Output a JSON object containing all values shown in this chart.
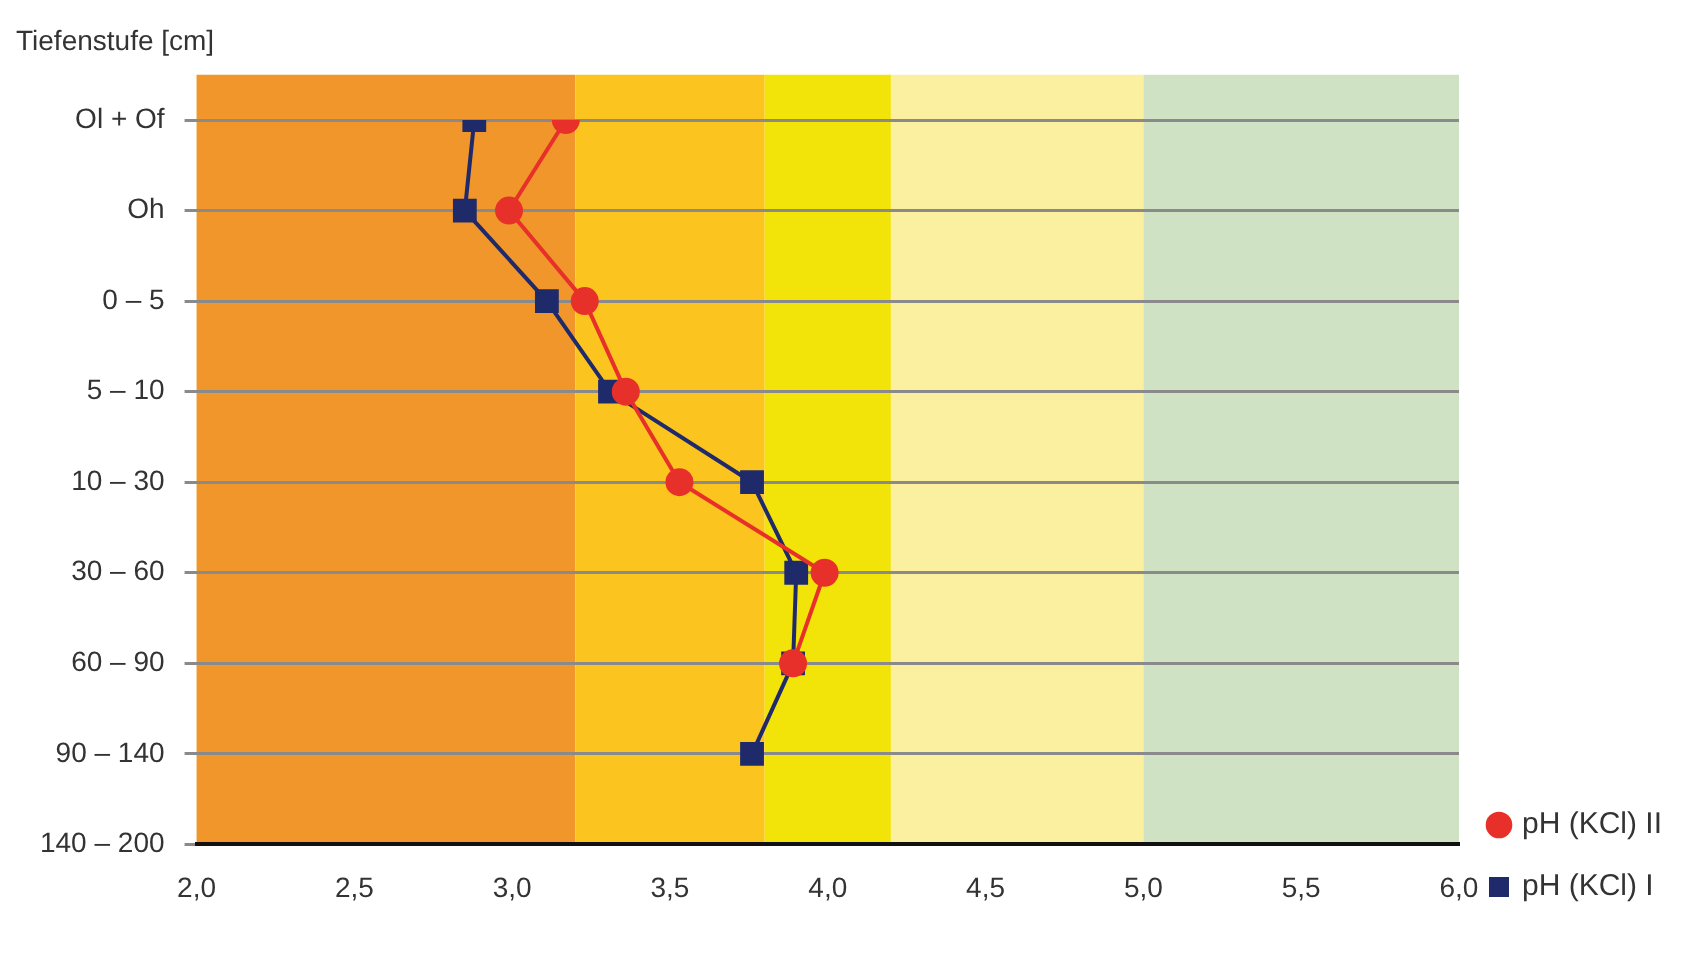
{
  "chart_data": {
    "type": "line",
    "ylabel": "Tiefenstufe [cm]",
    "categories": [
      "Ol + Of",
      "Oh",
      "0 – 5",
      "5 – 10",
      "10 – 30",
      "30 – 60",
      "60 – 90",
      "90 – 140",
      "140 – 200"
    ],
    "orientation": "horizontal",
    "series": [
      {
        "name": "pH (KCl) I",
        "color": "#1f2a6b",
        "marker": "square",
        "values": [
          2.88,
          2.85,
          3.11,
          3.31,
          3.76,
          3.9,
          3.89,
          3.76,
          null
        ]
      },
      {
        "name": "pH (KCl) II",
        "color": "#e8302a",
        "marker": "circle",
        "values": [
          3.17,
          2.99,
          3.23,
          3.36,
          3.53,
          3.99,
          3.89,
          null,
          null
        ]
      }
    ],
    "xlim": [
      2.0,
      6.0
    ],
    "xticks": [
      {
        "value": 2.0,
        "label": "2,0"
      },
      {
        "value": 2.5,
        "label": "2,5"
      },
      {
        "value": 3.0,
        "label": "3,0"
      },
      {
        "value": 3.5,
        "label": "3,5"
      },
      {
        "value": 4.0,
        "label": "4,0"
      },
      {
        "value": 4.5,
        "label": "4,5"
      },
      {
        "value": 5.0,
        "label": "5,0"
      },
      {
        "value": 5.5,
        "label": "5,5"
      },
      {
        "value": 6.0,
        "label": "6,0"
      }
    ],
    "bands": [
      {
        "axis": "x",
        "from": 2.0,
        "to": 3.2,
        "color": "#f0962a"
      },
      {
        "axis": "x",
        "from": 3.2,
        "to": 3.8,
        "color": "#fcc41e"
      },
      {
        "axis": "x",
        "from": 3.8,
        "to": 4.2,
        "color": "#f2e408"
      },
      {
        "axis": "x",
        "from": 4.2,
        "to": 5.0,
        "color": "#faf0a0"
      },
      {
        "axis": "x",
        "from": 5.0,
        "to": 6.0,
        "color": "#cfe3c4"
      }
    ],
    "grid": "y",
    "legend": "bottom right",
    "line_style": "solid"
  }
}
